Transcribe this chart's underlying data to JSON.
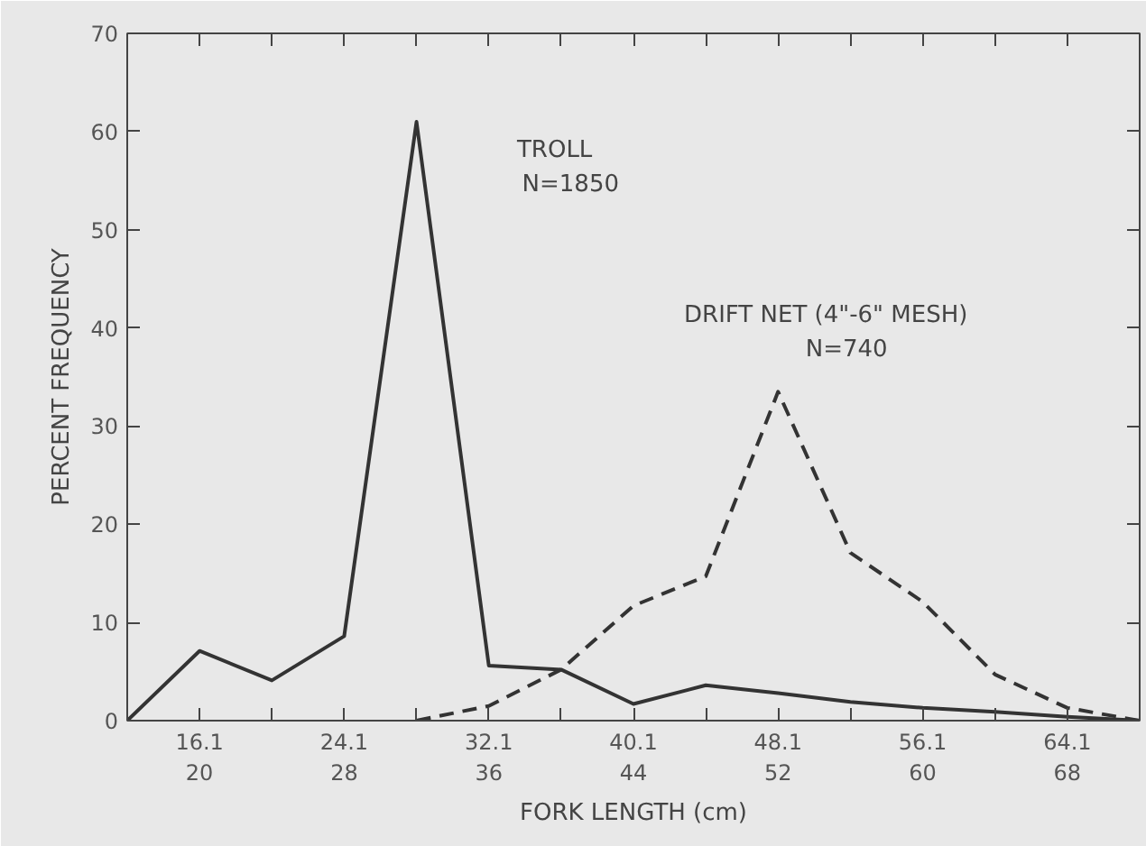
{
  "chart_data": {
    "type": "line",
    "xlabel": "FORK LENGTH (cm)",
    "ylabel": "PERCENT FREQUENCY",
    "categories": [
      null,
      "16.1\n20",
      null,
      "24.1\n28",
      null,
      "32.1\n36",
      null,
      "40.1\n44",
      null,
      "48.1\n52",
      null,
      "56.1\n60",
      null,
      "64.1\n68",
      null
    ],
    "ylim": [
      0,
      70
    ],
    "yticks": [
      0,
      10,
      20,
      30,
      40,
      50,
      60,
      70
    ],
    "marker": "none",
    "series": [
      {
        "color": "#333333",
        "line_style": "solid",
        "values": [
          0,
          7.1,
          4.1,
          8.6,
          61,
          5.6,
          5.2,
          1.7,
          3.6,
          2.8,
          1.9,
          1.3,
          0.9,
          0.4,
          0
        ]
      },
      {
        "color": "#333333",
        "line_style": "dashed",
        "values": [
          null,
          null,
          null,
          null,
          0,
          1.5,
          5.2,
          11.7,
          14.7,
          33.5,
          17.1,
          12.1,
          4.7,
          1.3,
          0
        ]
      }
    ],
    "annotations": [
      "TROLL",
      "N=1850",
      "DRIFT NET (4\"-6\" MESH)",
      "N=740"
    ]
  }
}
